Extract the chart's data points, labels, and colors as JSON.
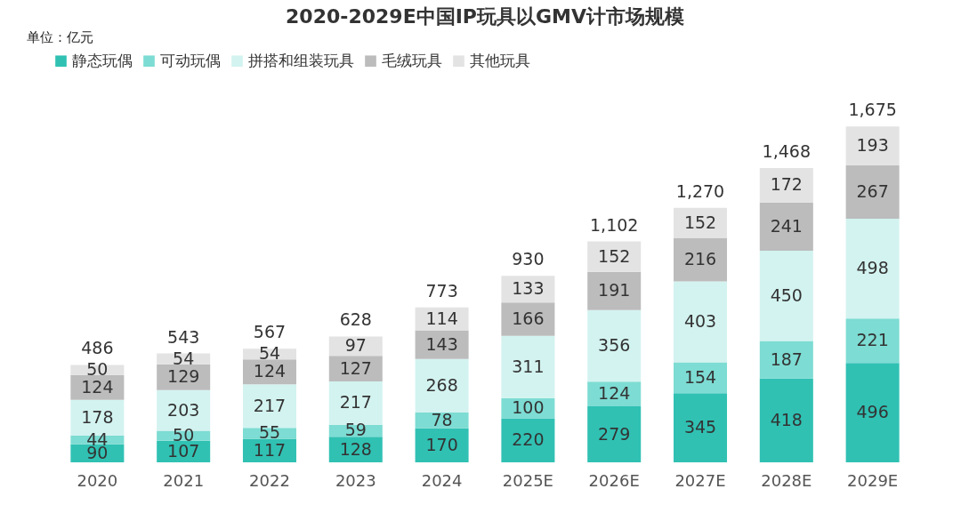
{
  "chart_data": {
    "type": "bar",
    "title": "2020-2029E中国IP玩具以GMV计市场规模",
    "annotations": [
      "单位：亿元"
    ],
    "categories": [
      "2020",
      "2021",
      "2022",
      "2023",
      "2024",
      "2025E",
      "2026E",
      "2027E",
      "2028E",
      "2029E"
    ],
    "stacked": true,
    "data_labels": true,
    "legend": "top",
    "grid": false,
    "series": [
      {
        "name": "静态玩偶",
        "color": "#30c1b3",
        "values": [
          90,
          107,
          117,
          128,
          170,
          220,
          279,
          345,
          418,
          496
        ]
      },
      {
        "name": "可动玩偶",
        "color": "#7ddcd3",
        "values": [
          44,
          50,
          55,
          59,
          78,
          100,
          124,
          154,
          187,
          221
        ]
      },
      {
        "name": "拼搭和组装玩具",
        "color": "#d3f3f0",
        "values": [
          178,
          203,
          217,
          217,
          268,
          311,
          356,
          403,
          450,
          498
        ]
      },
      {
        "name": "毛绒玩具",
        "color": "#bcbcbc",
        "values": [
          124,
          129,
          124,
          127,
          143,
          166,
          191,
          216,
          241,
          267
        ]
      },
      {
        "name": "其他玩具",
        "color": "#e3e3e3",
        "values": [
          50,
          54,
          54,
          97,
          114,
          133,
          152,
          152,
          172,
          193
        ]
      }
    ],
    "totals": [
      "486",
      "543",
      "567",
      "628",
      "773",
      "930",
      "1,102",
      "1,270",
      "1,468",
      "1,675"
    ]
  }
}
